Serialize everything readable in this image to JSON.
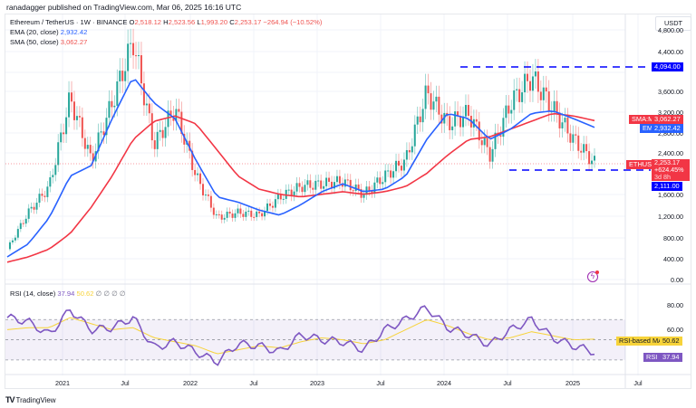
{
  "header": {
    "published": "ranadagger published on TradingView.com, Mar 06, 2025 16:16 UTC"
  },
  "legend": {
    "symbol": "Ethereum / TetherUS · 1W · BINANCE",
    "o_label": "O",
    "o": "2,518.12",
    "h_label": "H",
    "h": "2,523.56",
    "l_label": "L",
    "l": "1,993.20",
    "c_label": "C",
    "c": "2,253.17",
    "change": "−264.94 (−10.52%)",
    "ema_label": "EMA (20, close)",
    "ema_value": "2,932.42",
    "sma_label": "SMA (50, close)",
    "sma_value": "3,062.27",
    "rsi_label": "RSI (14, close)",
    "rsi_value": "37.94",
    "rsi_ma_value": "50.62",
    "rsi_extra": "∅ ∅ ∅ ∅"
  },
  "price_axis": {
    "currency": "USDT",
    "ticks": [
      "4,800.00",
      "4,400.00",
      "4,000.00",
      "3,600.00",
      "3,200.00",
      "2,800.00",
      "2,400.00",
      "1,600.00",
      "1,200.00",
      "800.00",
      "400.00",
      "0.00"
    ]
  },
  "price_tags": {
    "resistance": "4,094.00",
    "sma_name": "SMA:MA",
    "sma": "3,062.27",
    "ema_name": "EMA",
    "ema": "2,932.42",
    "symbol_name": "ETHUSDT",
    "last": "2,253.17",
    "last_change": "+624.45%",
    "countdown": "3d 8h",
    "support": "2,111.00"
  },
  "rsi_axis": {
    "ticks": [
      "80.00",
      "60.00",
      "40.00"
    ],
    "ma_name": "RSI-based MA",
    "ma": "50.62",
    "rsi_name": "RSI",
    "rsi": "37.94"
  },
  "time_axis": {
    "labels": [
      "2021",
      "Jul",
      "2022",
      "Jul",
      "2023",
      "Jul",
      "2024",
      "Jul",
      "2025",
      "Jul"
    ]
  },
  "footer": {
    "brand": "TradingView",
    "logo": "TV"
  },
  "colors": {
    "up": "#26a69a",
    "down": "#ef5350",
    "ema": "#2962ff",
    "sma": "#f23645",
    "rsi": "#7e57c2",
    "rsi_ma": "#f7d33a",
    "level": "#0000ff"
  },
  "chart_data": [
    {
      "type": "line",
      "title": "Ethereum / TetherUS · 1W · BINANCE",
      "xlabel": "",
      "ylabel": "USDT",
      "ylim": [
        0,
        4800
      ],
      "categories": [
        "2020-12",
        "2021-01",
        "2021-03",
        "2021-05",
        "2021-07",
        "2021-09",
        "2021-11",
        "2022-01",
        "2022-03",
        "2022-05",
        "2022-07",
        "2022-09",
        "2022-11",
        "2023-01",
        "2023-03",
        "2023-05",
        "2023-07",
        "2023-09",
        "2023-11",
        "2024-01",
        "2024-03",
        "2024-05",
        "2024-07",
        "2024-09",
        "2024-11",
        "2024-12",
        "2025-01",
        "2025-02",
        "2025-03"
      ],
      "series": [
        {
          "name": "ETHUSDT close",
          "values": [
            600,
            1300,
            1800,
            3500,
            2300,
            3400,
            4600,
            2600,
            3300,
            2000,
            1200,
            1300,
            1250,
            1600,
            1800,
            1850,
            1900,
            1650,
            2000,
            2300,
            3600,
            3000,
            3200,
            2400,
            3400,
            3900,
            3300,
            2700,
            2253
          ]
        },
        {
          "name": "EMA (20, close)",
          "values": [
            450,
            700,
            1200,
            2000,
            2200,
            3100,
            3900,
            3400,
            3100,
            2300,
            1600,
            1500,
            1350,
            1250,
            1450,
            1700,
            1850,
            1700,
            1750,
            2000,
            2700,
            3200,
            3100,
            2700,
            2900,
            3200,
            3250,
            3100,
            2932
          ]
        },
        {
          "name": "SMA (50, close)",
          "values": [
            350,
            450,
            600,
            900,
            1400,
            2000,
            2700,
            3050,
            3150,
            3000,
            2500,
            2000,
            1750,
            1650,
            1600,
            1650,
            1700,
            1650,
            1700,
            1800,
            2050,
            2400,
            2700,
            2750,
            2900,
            3050,
            3200,
            3150,
            3062
          ]
        }
      ],
      "annotations": [
        {
          "type": "hline",
          "y": 4094,
          "label": "4,094.00",
          "style": "dashed"
        },
        {
          "type": "hline",
          "y": 2111,
          "label": "2,111.00",
          "style": "dashed"
        }
      ]
    },
    {
      "type": "line",
      "title": "RSI (14, close)",
      "ylim": [
        20,
        90
      ],
      "bands": [
        30,
        50,
        70
      ],
      "series": [
        {
          "name": "RSI",
          "values": [
            72,
            68,
            55,
            80,
            60,
            62,
            72,
            42,
            48,
            38,
            28,
            46,
            44,
            38,
            55,
            50,
            48,
            40,
            60,
            70,
            82,
            62,
            55,
            45,
            60,
            70,
            52,
            44,
            37.94
          ]
        },
        {
          "name": "RSI-based MA",
          "values": [
            60,
            62,
            62,
            72,
            66,
            60,
            62,
            52,
            48,
            44,
            36,
            40,
            44,
            42,
            48,
            52,
            50,
            46,
            50,
            60,
            70,
            64,
            56,
            50,
            52,
            58,
            54,
            50,
            50.62
          ]
        }
      ],
      "last": {
        "rsi": 37.94,
        "ma": 50.62
      }
    }
  ]
}
